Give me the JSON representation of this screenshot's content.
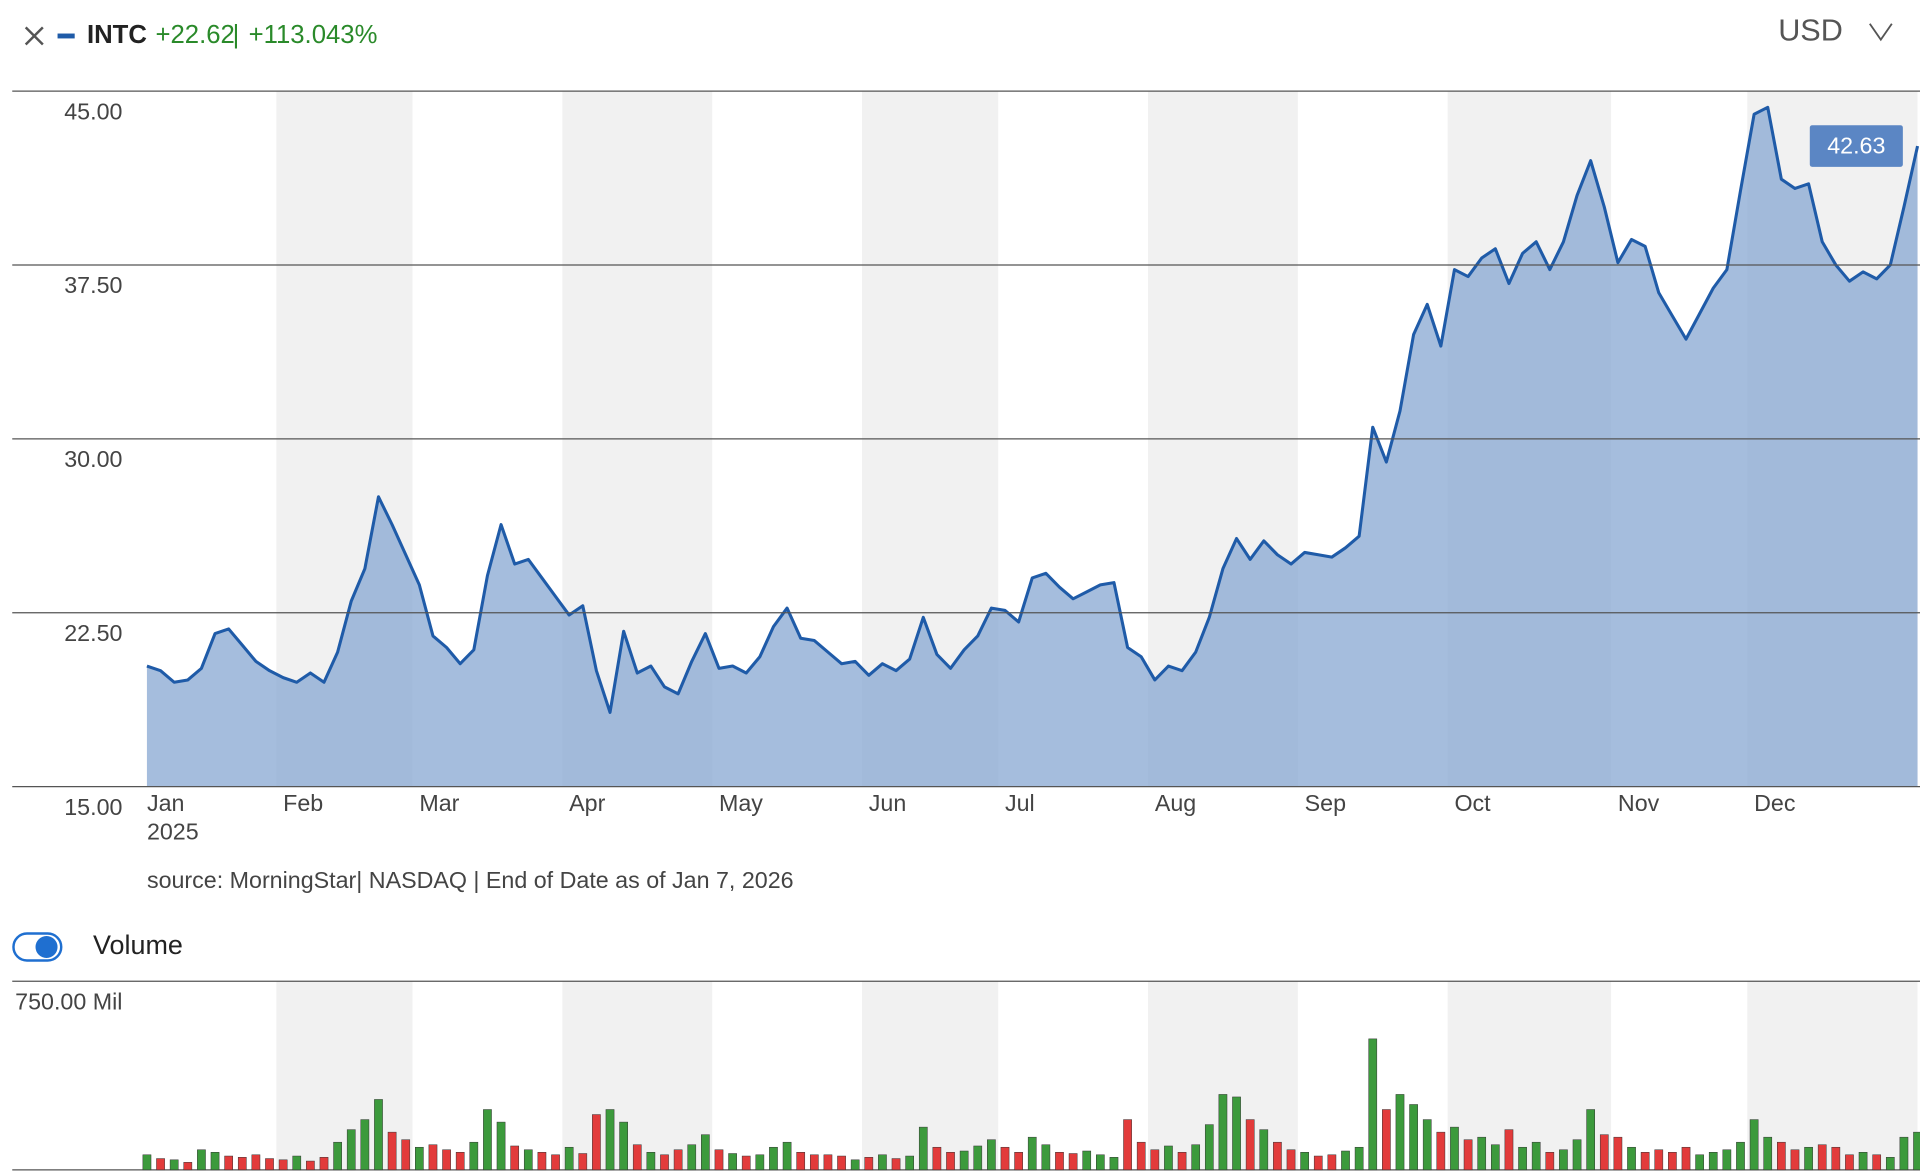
{
  "header": {
    "ticker": "INTC",
    "change": "+22.62",
    "change_pct": "+113.043%",
    "currency": "USD"
  },
  "source": "source: MorningStar| NASDAQ | End of Date as of Jan 7, 2026",
  "volume_toggle": "Volume",
  "chart_data": [
    {
      "type": "area",
      "line_color": "#1f5ba8",
      "fill_color": "#8fadd4",
      "year_label": "2025",
      "categories": [
        "Jan",
        null,
        null,
        null,
        null,
        null,
        null,
        null,
        null,
        null,
        "Feb",
        null,
        null,
        null,
        null,
        null,
        null,
        null,
        null,
        null,
        "Mar",
        null,
        null,
        null,
        null,
        null,
        null,
        null,
        null,
        null,
        null,
        "Apr",
        null,
        null,
        null,
        null,
        null,
        null,
        null,
        null,
        null,
        null,
        "May",
        null,
        null,
        null,
        null,
        null,
        null,
        null,
        null,
        null,
        null,
        "Jun",
        null,
        null,
        null,
        null,
        null,
        null,
        null,
        null,
        null,
        "Jul",
        null,
        null,
        null,
        null,
        null,
        null,
        null,
        null,
        null,
        null,
        "Aug",
        null,
        null,
        null,
        null,
        null,
        null,
        null,
        null,
        null,
        null,
        "Sep",
        null,
        null,
        null,
        null,
        null,
        null,
        null,
        null,
        null,
        null,
        "Oct",
        null,
        null,
        null,
        null,
        null,
        null,
        null,
        null,
        null,
        null,
        null,
        "Nov",
        null,
        null,
        null,
        null,
        null,
        null,
        null,
        null,
        null,
        "Dec",
        null,
        null,
        null,
        null,
        null,
        null,
        null,
        null,
        null,
        null,
        null,
        null
      ],
      "values": [
        20.2,
        20.0,
        19.5,
        19.6,
        20.1,
        21.6,
        21.8,
        21.1,
        20.4,
        20.0,
        19.7,
        19.5,
        19.9,
        19.5,
        20.8,
        23.0,
        24.4,
        27.5,
        26.3,
        25.0,
        23.7,
        21.5,
        21.0,
        20.3,
        20.9,
        24.1,
        26.3,
        24.6,
        24.8,
        24.0,
        23.2,
        22.4,
        22.8,
        20.0,
        18.2,
        21.7,
        19.9,
        20.2,
        19.3,
        19.0,
        20.4,
        21.6,
        20.1,
        20.2,
        19.9,
        20.6,
        21.9,
        22.7,
        21.4,
        21.3,
        20.8,
        20.3,
        20.4,
        19.8,
        20.3,
        20.0,
        20.5,
        22.3,
        20.7,
        20.1,
        20.9,
        21.5,
        22.7,
        22.6,
        22.1,
        24.0,
        24.2,
        23.6,
        23.1,
        23.4,
        23.7,
        23.8,
        21.0,
        20.6,
        19.6,
        20.2,
        20.0,
        20.8,
        22.3,
        24.4,
        25.7,
        24.8,
        25.6,
        25.0,
        24.6,
        25.1,
        25.0,
        24.9,
        25.3,
        25.8,
        30.5,
        29.0,
        31.2,
        34.5,
        35.8,
        34.0,
        37.3,
        37.0,
        37.8,
        38.2,
        36.7,
        38.0,
        38.5,
        37.3,
        38.5,
        40.5,
        42.0,
        40.0,
        37.6,
        38.6,
        38.3,
        36.3,
        35.3,
        34.3,
        35.4,
        36.5,
        37.3,
        40.7,
        44.0,
        44.3,
        41.2,
        40.8,
        41.0,
        38.5,
        37.5,
        36.8,
        37.2,
        36.9,
        37.5,
        40.0,
        42.63
      ],
      "ylim": [
        15,
        45
      ],
      "yticks": [
        {
          "value": 15,
          "label": "15.00"
        },
        {
          "value": 22.5,
          "label": "22.50"
        },
        {
          "value": 30,
          "label": "30.00"
        },
        {
          "value": 37.5,
          "label": "37.50"
        },
        {
          "value": 45,
          "label": "45.00"
        }
      ],
      "grid": true
    },
    {
      "type": "bar",
      "values": [
        60,
        45,
        40,
        30,
        80,
        70,
        55,
        50,
        60,
        45,
        40,
        55,
        35,
        50,
        110,
        160,
        200,
        280,
        150,
        120,
        90,
        100,
        80,
        70,
        110,
        240,
        190,
        95,
        80,
        70,
        60,
        90,
        65,
        220,
        240,
        190,
        100,
        70,
        60,
        80,
        100,
        140,
        80,
        65,
        55,
        60,
        90,
        110,
        70,
        60,
        60,
        55,
        40,
        50,
        60,
        45,
        55,
        170,
        90,
        70,
        75,
        95,
        120,
        90,
        70,
        130,
        100,
        70,
        65,
        75,
        60,
        50,
        200,
        110,
        80,
        95,
        70,
        100,
        180,
        300,
        290,
        200,
        160,
        110,
        80,
        70,
        55,
        60,
        75,
        90,
        521,
        240,
        300,
        260,
        200,
        150,
        170,
        120,
        130,
        100,
        160,
        90,
        110,
        70,
        80,
        120,
        240,
        140,
        130,
        90,
        70,
        80,
        70,
        90,
        60,
        70,
        80,
        110,
        200,
        130,
        110,
        80,
        90,
        100,
        90,
        60,
        70,
        60,
        50,
        130,
        150
      ],
      "colors": [
        "#3c9a3c",
        "#e23b3b",
        "#3c9a3c",
        "#e23b3b",
        "#3c9a3c",
        "#3c9a3c",
        "#e23b3b",
        "#e23b3b",
        "#e23b3b",
        "#e23b3b",
        "#e23b3b",
        "#3c9a3c",
        "#e23b3b",
        "#e23b3b",
        "#3c9a3c",
        "#3c9a3c",
        "#3c9a3c",
        "#3c9a3c",
        "#e23b3b",
        "#e23b3b",
        "#3c9a3c",
        "#e23b3b",
        "#e23b3b",
        "#e23b3b",
        "#3c9a3c",
        "#3c9a3c",
        "#3c9a3c",
        "#e23b3b",
        "#3c9a3c",
        "#e23b3b",
        "#e23b3b",
        "#3c9a3c",
        "#e23b3b",
        "#e23b3b",
        "#3c9a3c",
        "#3c9a3c",
        "#e23b3b",
        "#3c9a3c",
        "#e23b3b",
        "#e23b3b",
        "#3c9a3c",
        "#3c9a3c",
        "#e23b3b",
        "#3c9a3c",
        "#e23b3b",
        "#3c9a3c",
        "#3c9a3c",
        "#3c9a3c",
        "#e23b3b",
        "#e23b3b",
        "#e23b3b",
        "#e23b3b",
        "#3c9a3c",
        "#e23b3b",
        "#3c9a3c",
        "#e23b3b",
        "#3c9a3c",
        "#3c9a3c",
        "#e23b3b",
        "#e23b3b",
        "#3c9a3c",
        "#3c9a3c",
        "#3c9a3c",
        "#e23b3b",
        "#e23b3b",
        "#3c9a3c",
        "#3c9a3c",
        "#e23b3b",
        "#e23b3b",
        "#3c9a3c",
        "#3c9a3c",
        "#3c9a3c",
        "#e23b3b",
        "#e23b3b",
        "#e23b3b",
        "#3c9a3c",
        "#e23b3b",
        "#3c9a3c",
        "#3c9a3c",
        "#3c9a3c",
        "#3c9a3c",
        "#e23b3b",
        "#3c9a3c",
        "#e23b3b",
        "#e23b3b",
        "#3c9a3c",
        "#e23b3b",
        "#e23b3b",
        "#3c9a3c",
        "#3c9a3c",
        "#3c9a3c",
        "#e23b3b",
        "#3c9a3c",
        "#3c9a3c",
        "#3c9a3c",
        "#e23b3b",
        "#3c9a3c",
        "#e23b3b",
        "#3c9a3c",
        "#3c9a3c",
        "#e23b3b",
        "#3c9a3c",
        "#3c9a3c",
        "#e23b3b",
        "#3c9a3c",
        "#3c9a3c",
        "#3c9a3c",
        "#e23b3b",
        "#e23b3b",
        "#3c9a3c",
        "#e23b3b",
        "#e23b3b",
        "#e23b3b",
        "#e23b3b",
        "#3c9a3c",
        "#3c9a3c",
        "#3c9a3c",
        "#3c9a3c",
        "#3c9a3c",
        "#3c9a3c",
        "#e23b3b",
        "#e23b3b",
        "#3c9a3c",
        "#e23b3b",
        "#e23b3b",
        "#e23b3b",
        "#3c9a3c",
        "#e23b3b",
        "#3c9a3c",
        "#3c9a3c",
        "#3c9a3c"
      ],
      "ylim": [
        0,
        750
      ],
      "yticks": [
        0,
        {
          "value": 750,
          "label": "750.00 Mil"
        }
      ],
      "grid": true
    }
  ]
}
